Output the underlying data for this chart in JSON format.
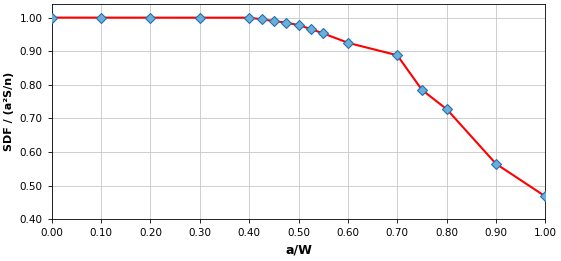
{
  "x_pts": [
    0.0,
    0.1,
    0.2,
    0.3,
    0.4,
    0.425,
    0.45,
    0.475,
    0.5,
    0.525,
    0.55,
    0.6,
    0.7,
    0.75,
    0.8,
    0.9,
    1.0
  ],
  "y_pts": [
    1.0,
    1.0,
    1.0,
    1.0,
    1.0,
    0.995,
    0.99,
    0.985,
    0.978,
    0.966,
    0.953,
    0.925,
    0.888,
    0.785,
    0.728,
    0.565,
    0.468
  ],
  "line_color": "#ff0000",
  "marker_facecolor": "#6baed6",
  "marker_edgecolor": "#2171b5",
  "xlabel": "a/W",
  "ylabel": "SDF / (a²S/n)",
  "xlim": [
    0.0,
    1.0
  ],
  "ylim": [
    0.4,
    1.04
  ],
  "xticks": [
    0.0,
    0.1,
    0.2,
    0.3,
    0.4,
    0.5,
    0.6,
    0.7,
    0.8,
    0.9,
    1.0
  ],
  "yticks": [
    0.4,
    0.5,
    0.6,
    0.7,
    0.8,
    0.9,
    1.0
  ],
  "grid_color": "#c8c8c8",
  "bg_color": "#ffffff",
  "marker_size": 5,
  "line_width": 1.5
}
